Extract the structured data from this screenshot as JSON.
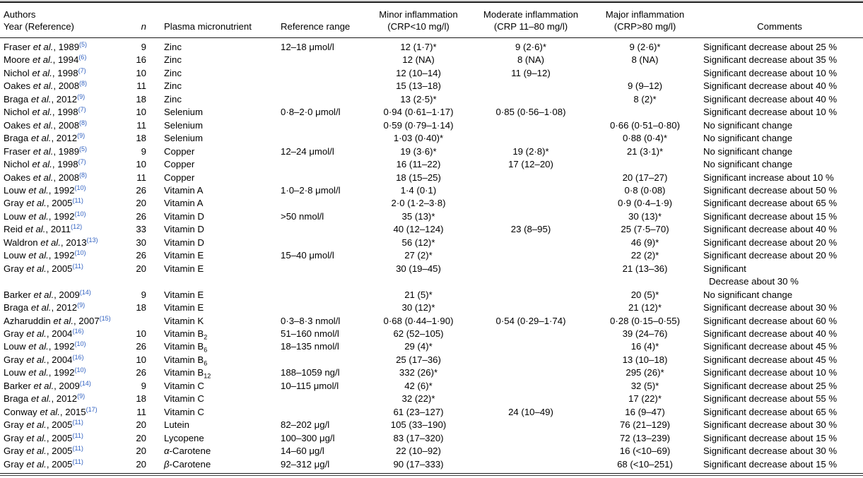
{
  "accent": {
    "link_color": "#2e5fc0"
  },
  "table": {
    "headers": {
      "authors_line1": "Authors",
      "authors_line2": "Year (Reference)",
      "n": "n",
      "nutrient": "Plasma micronutrient",
      "range": "Reference range",
      "minor_line1": "Minor inflammation",
      "minor_line2": "(CRP<10 mg/l)",
      "moderate_line1": "Moderate inflammation",
      "moderate_line2": "(CRP 11–80 mg/l)",
      "major_line1": "Major inflammation",
      "major_line2": "(CRP>80 mg/l)",
      "comments": "Comments"
    },
    "rows": [
      {
        "a": "Fraser ",
        "etal": "et al.",
        "y": ", 1989",
        "ref": "(5)",
        "n": "9",
        "ni": "",
        "nutrient": "Zinc",
        "sub": "",
        "range": "12–18 μmol/l",
        "minor": "12 (1·7)*",
        "moderate": "9 (2·6)*",
        "major": "9 (2·6)*",
        "comment": "Significant decrease about 25 %"
      },
      {
        "a": "Moore ",
        "etal": "et al.",
        "y": ", 1994",
        "ref": "(6)",
        "n": "16",
        "ni": "",
        "nutrient": "Zinc",
        "sub": "",
        "range": "",
        "minor": "12 (NA)",
        "moderate": "8 (NA)",
        "major": "8 (NA)",
        "comment": "Significant decrease about 35 %"
      },
      {
        "a": "Nichol ",
        "etal": "et al.",
        "y": ", 1998",
        "ref": "(7)",
        "n": "10",
        "ni": "",
        "nutrient": "Zinc",
        "sub": "",
        "range": "",
        "minor": "12 (10–14)",
        "moderate": "11 (9–12)",
        "major": "",
        "comment": "Significant decrease about 10 %"
      },
      {
        "a": "Oakes ",
        "etal": "et al.",
        "y": ", 2008",
        "ref": "(8)",
        "n": "11",
        "ni": "",
        "nutrient": "Zinc",
        "sub": "",
        "range": "",
        "minor": "15 (13–18)",
        "moderate": "",
        "major": "9 (9–12)",
        "comment": "Significant decrease about 40 %"
      },
      {
        "a": "Braga ",
        "etal": "et al.",
        "y": ", 2012",
        "ref": "(9)",
        "n": "18",
        "ni": "",
        "nutrient": "Zinc",
        "sub": "",
        "range": "",
        "minor": "13 (2·5)*",
        "moderate": "",
        "major": "8 (2)*",
        "comment": "Significant decrease about 40 %"
      },
      {
        "a": "Nichol ",
        "etal": "et al.",
        "y": ", 1998",
        "ref": "(7)",
        "n": "10",
        "ni": "",
        "nutrient": "Selenium",
        "sub": "",
        "range": "0·8–2·0 μmol/l",
        "minor": "0·94 (0·61–1·17)",
        "moderate": "0·85 (0·56–1·08)",
        "major": "",
        "comment": "Significant decrease about 10 %"
      },
      {
        "a": "Oakes ",
        "etal": "et al.",
        "y": ", 2008",
        "ref": "(8)",
        "n": "11",
        "ni": "",
        "nutrient": "Selenium",
        "sub": "",
        "range": "",
        "minor": "0·59 (0·79–1·14)",
        "moderate": "",
        "major": "0·66 (0·51–0·80)",
        "comment": "No significant change"
      },
      {
        "a": "Braga ",
        "etal": "et al.",
        "y": ", 2012",
        "ref": "(9)",
        "n": "18",
        "ni": "",
        "nutrient": "Selenium",
        "sub": "",
        "range": "",
        "minor": "1·03 (0·40)*",
        "moderate": "",
        "major": "0·88 (0·4)*",
        "comment": "No significant change"
      },
      {
        "a": "Fraser ",
        "etal": "et al.",
        "y": ", 1989",
        "ref": "(5)",
        "n": "9",
        "ni": "",
        "nutrient": "Copper",
        "sub": "",
        "range": "12–24 μmol/l",
        "minor": "19 (3·6)*",
        "moderate": "19 (2·8)*",
        "major": "21 (3·1)*",
        "comment": "No significant change"
      },
      {
        "a": "Nichol ",
        "etal": "et al.",
        "y": ", 1998",
        "ref": "(7)",
        "n": "10",
        "ni": "",
        "nutrient": "Copper",
        "sub": "",
        "range": "",
        "minor": "16 (11–22)",
        "moderate": "17 (12–20)",
        "major": "",
        "comment": "No significant change"
      },
      {
        "a": "Oakes ",
        "etal": "et al.",
        "y": ", 2008",
        "ref": "(8)",
        "n": "11",
        "ni": "",
        "nutrient": "Copper",
        "sub": "",
        "range": "",
        "minor": "18 (15–25)",
        "moderate": "",
        "major": "20 (17–27)",
        "comment": "Significant increase about 10 %"
      },
      {
        "a": "Louw ",
        "etal": "et al.",
        "y": ", 1992",
        "ref": "(10)",
        "n": "26",
        "ni": "",
        "nutrient": "Vitamin A",
        "sub": "",
        "range": "1·0–2·8 μmol/l",
        "minor": "1·4 (0·1)",
        "moderate": "",
        "major": "0·8 (0·08)",
        "comment": "Significant decrease about 50 %"
      },
      {
        "a": "Gray ",
        "etal": "et al.",
        "y": ", 2005",
        "ref": "(11)",
        "n": "20",
        "ni": "",
        "nutrient": "Vitamin A",
        "sub": "",
        "range": "",
        "minor": "2·0 (1·2–3·8)",
        "moderate": "",
        "major": "0·9 (0·4–1·9)",
        "comment": "Significant decrease about 65 %"
      },
      {
        "a": "Louw ",
        "etal": "et al.",
        "y": ", 1992",
        "ref": "(10)",
        "n": "26",
        "ni": "",
        "nutrient": "Vitamin D",
        "sub": "",
        "range": ">50 nmol/l",
        "minor": "35 (13)*",
        "moderate": "",
        "major": "30 (13)*",
        "comment": "Significant decrease about 15 %"
      },
      {
        "a": "Reid ",
        "etal": "et al.",
        "y": ", 2011",
        "ref": "(12)",
        "n": "33",
        "ni": "",
        "nutrient": "Vitamin D",
        "sub": "",
        "range": "",
        "minor": "40 (12–124)",
        "moderate": "23 (8–95)",
        "major": "25 (7·5–70)",
        "comment": "Significant decrease about 40 %"
      },
      {
        "a": "Waldron ",
        "etal": "et al.",
        "y": ", 2013",
        "ref": "(13)",
        "n": "30",
        "ni": "",
        "nutrient": "Vitamin D",
        "sub": "",
        "range": "",
        "minor": "56 (12)*",
        "moderate": "",
        "major": "46 (9)*",
        "comment": "Significant decrease about 20 %"
      },
      {
        "a": "Louw ",
        "etal": "et al.",
        "y": ", 1992",
        "ref": "(10)",
        "n": "26",
        "ni": "",
        "nutrient": "Vitamin E",
        "sub": "",
        "range": "15–40 μmol/l",
        "minor": "27 (2)*",
        "moderate": "",
        "major": "22 (2)*",
        "comment": "Significant decrease about 20 %"
      },
      {
        "a": "Gray ",
        "etal": "et al.",
        "y": ", 2005",
        "ref": "(11)",
        "n": "20",
        "ni": "",
        "nutrient": "Vitamin E",
        "sub": "",
        "range": "",
        "minor": "30 (19–45)",
        "moderate": "",
        "major": "21 (13–36)",
        "comment": "Significant"
      },
      {
        "a": "",
        "etal": "",
        "y": "",
        "ref": "",
        "n": "",
        "ni": "",
        "nutrient": "",
        "sub": "",
        "range": "",
        "minor": "",
        "moderate": "",
        "major": "",
        "comment": "Decrease about 30 %",
        "indent": true
      },
      {
        "a": "Barker ",
        "etal": "et al.",
        "y": ", 2009",
        "ref": "(14)",
        "n": "9",
        "ni": "",
        "nutrient": "Vitamin E",
        "sub": "",
        "range": "",
        "minor": "21 (5)*",
        "moderate": "",
        "major": "20 (5)*",
        "comment": "No significant change"
      },
      {
        "a": "Braga ",
        "etal": "et al.",
        "y": ", 2012",
        "ref": "(9)",
        "n": "18",
        "ni": "",
        "nutrient": "Vitamin E",
        "sub": "",
        "range": "",
        "minor": "30 (12)*",
        "moderate": "",
        "major": "21 (12)*",
        "comment": "Significant decrease about 30 %"
      },
      {
        "a": "Azharuddin ",
        "etal": "et al.",
        "y": ", 2007",
        "ref": "(15)",
        "n": "",
        "ni": "",
        "nutrient": "Vitamin K",
        "sub": "",
        "range": "0·3–8·3 nmol/l",
        "minor": "0·68 (0·44–1·90)",
        "moderate": "0·54 (0·29–1·74)",
        "major": "0·28 (0·15–0·55)",
        "comment": "Significant decrease about 60 %"
      },
      {
        "a": "Gray ",
        "etal": "et al.",
        "y": ", 2004",
        "ref": "(16)",
        "n": "10",
        "ni": "",
        "nutrient": "Vitamin B",
        "sub": "2",
        "range": "51–160 nmol/l",
        "minor": "62 (52–105)",
        "moderate": "",
        "major": "39 (24–76)",
        "comment": "Significant decrease about 40 %"
      },
      {
        "a": "Louw ",
        "etal": "et al.",
        "y": ", 1992",
        "ref": "(10)",
        "n": "26",
        "ni": "",
        "nutrient": "Vitamin B",
        "sub": "6",
        "range": "18–135 nmol/l",
        "minor": "29 (4)*",
        "moderate": "",
        "major": "16 (4)*",
        "comment": "Significant decrease about 45 %"
      },
      {
        "a": "Gray ",
        "etal": "et al.",
        "y": ", 2004",
        "ref": "(16)",
        "n": "10",
        "ni": "",
        "nutrient": "Vitamin B",
        "sub": "6",
        "range": "",
        "minor": "25 (17–36)",
        "moderate": "",
        "major": "13 (10–18)",
        "comment": "Significant decrease about 45 %"
      },
      {
        "a": "Louw ",
        "etal": "et al.",
        "y": ", 1992",
        "ref": "(10)",
        "n": "26",
        "ni": "",
        "nutrient": "Vitamin B",
        "sub": "12",
        "range": "188–1059 ng/l",
        "minor": "332 (26)*",
        "moderate": "",
        "major": "295 (26)*",
        "comment": "Significant decrease about 10 %"
      },
      {
        "a": "Barker ",
        "etal": "et al.",
        "y": ", 2009",
        "ref": "(14)",
        "n": "9",
        "ni": "",
        "nutrient": "Vitamin C",
        "sub": "",
        "range": "10–115 μmol/l",
        "minor": "42 (6)*",
        "moderate": "",
        "major": "32 (5)*",
        "comment": "Significant decrease about 25 %"
      },
      {
        "a": "Braga ",
        "etal": "et al.",
        "y": ", 2012",
        "ref": "(9)",
        "n": "18",
        "ni": "",
        "nutrient": "Vitamin C",
        "sub": "",
        "range": "",
        "minor": "32 (22)*",
        "moderate": "",
        "major": "17 (22)*",
        "comment": "Significant decrease about 55 %"
      },
      {
        "a": "Conway ",
        "etal": "et al.",
        "y": ", 2015",
        "ref": "(17)",
        "n": "11",
        "ni": "",
        "nutrient": "Vitamin C",
        "sub": "",
        "range": "",
        "minor": "61 (23–127)",
        "moderate": "24 (10–49)",
        "major": "16 (9–47)",
        "comment": "Significant decrease about 65 %"
      },
      {
        "a": "Gray ",
        "etal": "et al.",
        "y": ", 2005",
        "ref": "(11)",
        "n": "20",
        "ni": "",
        "nutrient": "Lutein",
        "sub": "",
        "range": "82–202 μg/l",
        "minor": "105 (33–190)",
        "moderate": "",
        "major": "76 (21–129)",
        "comment": "Significant decrease about 30 %"
      },
      {
        "a": "Gray ",
        "etal": "et al.",
        "y": ", 2005",
        "ref": "(11)",
        "n": "20",
        "ni": "",
        "nutrient": "Lycopene",
        "sub": "",
        "range": "100–300 μg/l",
        "minor": "83 (17–320)",
        "moderate": "",
        "major": "72 (13–239)",
        "comment": "Significant decrease about 15 %"
      },
      {
        "a": "Gray ",
        "etal": "et al.",
        "y": ", 2005",
        "ref": "(11)",
        "n": "20",
        "ni": "α",
        "nutrient": "-Carotene",
        "sub": "",
        "range": "14–60 μg/l",
        "minor": "22 (10–92)",
        "moderate": "",
        "major": "16 (<10–69)",
        "comment": "Significant decrease about 30 %"
      },
      {
        "a": "Gray ",
        "etal": "et al.",
        "y": ", 2005",
        "ref": "(11)",
        "n": "20",
        "ni": "β",
        "nutrient": "-Carotene",
        "sub": "",
        "range": "92–312 μg/l",
        "minor": "90 (17–333)",
        "moderate": "",
        "major": "68 (<10–251)",
        "comment": "Significant decrease about 15 %"
      }
    ]
  }
}
